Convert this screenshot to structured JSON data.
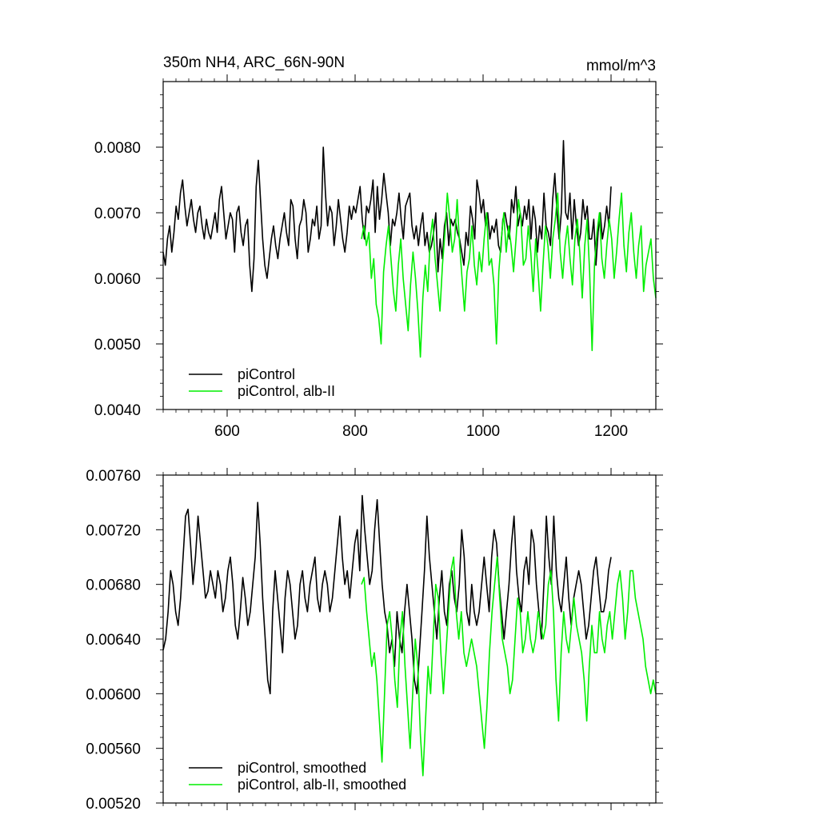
{
  "chart_data": [
    {
      "type": "line",
      "title": "350m NH4, ARC_66N-90N",
      "units": "mmol/m^3",
      "xlim": [
        500,
        1270
      ],
      "ylim": [
        0.004,
        0.009
      ],
      "xticks": [
        600,
        800,
        1000,
        1200
      ],
      "yticks": [
        0.004,
        0.005,
        0.006,
        0.007,
        0.008
      ],
      "xtick_labels": [
        "600",
        "800",
        "1000",
        "1200"
      ],
      "ytick_labels": [
        "0.0040",
        "0.0050",
        "0.0060",
        "0.0070",
        "0.0080"
      ],
      "legend": {
        "position": "bottom-left",
        "entries": [
          "piControl",
          "piControl, alb-II"
        ]
      },
      "series": [
        {
          "name": "piControl",
          "color": "#000000",
          "x_start": 500,
          "x_end": 1200,
          "values": [
            0.0064,
            0.0062,
            0.0066,
            0.0068,
            0.0064,
            0.0067,
            0.0071,
            0.0069,
            0.0073,
            0.0075,
            0.0071,
            0.0068,
            0.007,
            0.0072,
            0.0069,
            0.0067,
            0.007,
            0.0071,
            0.0068,
            0.0066,
            0.0069,
            0.0067,
            0.0066,
            0.0068,
            0.007,
            0.0067,
            0.0072,
            0.0074,
            0.007,
            0.0066,
            0.0068,
            0.007,
            0.0069,
            0.0064,
            0.007,
            0.0071,
            0.0067,
            0.0065,
            0.0068,
            0.0069,
            0.0062,
            0.0058,
            0.0063,
            0.0074,
            0.0078,
            0.0072,
            0.0066,
            0.0062,
            0.006,
            0.0063,
            0.0066,
            0.0068,
            0.0065,
            0.0063,
            0.0066,
            0.0068,
            0.007,
            0.0067,
            0.0065,
            0.0072,
            0.0071,
            0.0066,
            0.0063,
            0.0068,
            0.0069,
            0.0072,
            0.007,
            0.0064,
            0.0066,
            0.0069,
            0.0068,
            0.0071,
            0.0066,
            0.0068,
            0.008,
            0.0073,
            0.0068,
            0.0071,
            0.007,
            0.0065,
            0.0068,
            0.0072,
            0.0069,
            0.0066,
            0.0064,
            0.0067,
            0.0071,
            0.0069,
            0.0071,
            0.007,
            0.0072,
            0.0074,
            0.0069,
            0.0066,
            0.0071,
            0.007,
            0.0072,
            0.0075,
            0.0067,
            0.0074,
            0.0069,
            0.0072,
            0.0076,
            0.0073,
            0.007,
            0.0065,
            0.0069,
            0.0068,
            0.007,
            0.0073,
            0.0069,
            0.0066,
            0.0071,
            0.0072,
            0.0073,
            0.0068,
            0.0066,
            0.0068,
            0.0065,
            0.0068,
            0.007,
            0.0065,
            0.0067,
            0.0064,
            0.0065,
            0.0067,
            0.007,
            0.0061,
            0.0066,
            0.0063,
            0.0068,
            0.007,
            0.0065,
            0.0069,
            0.0068,
            0.0069,
            0.0067,
            0.0066,
            0.0064,
            0.0062,
            0.0067,
            0.0065,
            0.0071,
            0.0069,
            0.0066,
            0.0075,
            0.0073,
            0.007,
            0.0072,
            0.0068,
            0.007,
            0.0066,
            0.0068,
            0.0067,
            0.0069,
            0.0065,
            0.0064,
            0.0069,
            0.007,
            0.0068,
            0.0066,
            0.0072,
            0.007,
            0.0074,
            0.0068,
            0.007,
            0.0068,
            0.0071,
            0.0069,
            0.0072,
            0.0066,
            0.0071,
            0.0069,
            0.0064,
            0.0068,
            0.0066,
            0.0073,
            0.0068,
            0.0067,
            0.0065,
            0.0072,
            0.0076,
            0.007,
            0.0066,
            0.007,
            0.0081,
            0.007,
            0.0069,
            0.0073,
            0.0066,
            0.0072,
            0.0068,
            0.0065,
            0.0067,
            0.0072,
            0.0069,
            0.0071,
            0.0066,
            0.0066,
            0.0069,
            0.0062,
            0.0067,
            0.007,
            0.0066,
            0.0068,
            0.0071,
            0.0068,
            0.0074
          ]
        },
        {
          "name": "piControl, alb-II",
          "color": "#00ee00",
          "x_start": 810,
          "x_end": 1270,
          "values": [
            0.0066,
            0.0068,
            0.0065,
            0.0067,
            0.006,
            0.0063,
            0.0056,
            0.0054,
            0.005,
            0.0061,
            0.0065,
            0.0068,
            0.0063,
            0.0058,
            0.0055,
            0.0062,
            0.0066,
            0.006,
            0.0056,
            0.0052,
            0.0059,
            0.0064,
            0.006,
            0.0055,
            0.0048,
            0.0057,
            0.0062,
            0.0058,
            0.0066,
            0.0069,
            0.0063,
            0.0059,
            0.0055,
            0.0062,
            0.0067,
            0.0073,
            0.0069,
            0.0064,
            0.0066,
            0.0072,
            0.0065,
            0.006,
            0.0055,
            0.0061,
            0.0063,
            0.0068,
            0.0062,
            0.0059,
            0.0064,
            0.0061,
            0.0066,
            0.007,
            0.0062,
            0.0063,
            0.0059,
            0.005,
            0.0061,
            0.0066,
            0.007,
            0.0064,
            0.0068,
            0.0065,
            0.0061,
            0.0066,
            0.0072,
            0.0069,
            0.0062,
            0.0063,
            0.0068,
            0.0064,
            0.0058,
            0.0066,
            0.0061,
            0.0055,
            0.0062,
            0.0068,
            0.0065,
            0.006,
            0.0066,
            0.0069,
            0.0073,
            0.0064,
            0.006,
            0.0065,
            0.0068,
            0.0063,
            0.0059,
            0.0066,
            0.0069,
            0.0064,
            0.0057,
            0.0065,
            0.0069,
            0.0061,
            0.0049,
            0.0062,
            0.0067,
            0.007,
            0.0063,
            0.006,
            0.0065,
            0.0069,
            0.0066,
            0.006,
            0.0064,
            0.0069,
            0.0073,
            0.0065,
            0.0061,
            0.0067,
            0.007,
            0.0064,
            0.006,
            0.0065,
            0.0068,
            0.0058,
            0.0062,
            0.0064,
            0.0066,
            0.006,
            0.0057
          ]
        }
      ]
    },
    {
      "type": "line",
      "xlim": [
        500,
        1270
      ],
      "ylim": [
        0.0052,
        0.0076
      ],
      "xticks": [
        600,
        800,
        1000,
        1200
      ],
      "yticks": [
        0.0052,
        0.0056,
        0.006,
        0.0064,
        0.0068,
        0.0072,
        0.0076
      ],
      "ytick_labels": [
        "0.00520",
        "0.00560",
        "0.00600",
        "0.00640",
        "0.00680",
        "0.00720",
        "0.00760"
      ],
      "legend": {
        "position": "bottom-left",
        "entries": [
          "piControl, smoothed",
          "piControl, alb-II, smoothed"
        ]
      },
      "series": [
        {
          "name": "piControl, smoothed",
          "color": "#000000",
          "x_start": 500,
          "x_end": 1200,
          "values": [
            0.00632,
            0.0064,
            0.0066,
            0.0069,
            0.0068,
            0.0066,
            0.0065,
            0.0067,
            0.007,
            0.0073,
            0.00735,
            0.0071,
            0.0068,
            0.007,
            0.0073,
            0.0071,
            0.0069,
            0.0067,
            0.00675,
            0.0069,
            0.0068,
            0.0067,
            0.0069,
            0.0068,
            0.0066,
            0.0067,
            0.0069,
            0.007,
            0.0068,
            0.0065,
            0.0064,
            0.0066,
            0.00685,
            0.0067,
            0.0065,
            0.0066,
            0.0068,
            0.007,
            0.0074,
            0.0071,
            0.0067,
            0.0064,
            0.0061,
            0.006,
            0.0066,
            0.0069,
            0.0067,
            0.0065,
            0.0063,
            0.0067,
            0.0069,
            0.0068,
            0.0066,
            0.0064,
            0.0065,
            0.0068,
            0.0069,
            0.0067,
            0.0066,
            0.0068,
            0.0069,
            0.007,
            0.0067,
            0.0066,
            0.0068,
            0.0069,
            0.0068,
            0.0066,
            0.0067,
            0.0069,
            0.0071,
            0.0073,
            0.007,
            0.0068,
            0.0069,
            0.0067,
            0.0069,
            0.0071,
            0.0072,
            0.0069,
            0.00745,
            0.0072,
            0.007,
            0.0068,
            0.0069,
            0.0072,
            0.00742,
            0.0071,
            0.0068,
            0.0066,
            0.0065,
            0.0063,
            0.0064,
            0.0062,
            0.0066,
            0.0064,
            0.0063,
            0.0066,
            0.0068,
            0.0066,
            0.0064,
            0.0061,
            0.006,
            0.0063,
            0.0066,
            0.0069,
            0.0073,
            0.007,
            0.0068,
            0.0066,
            0.0064,
            0.0067,
            0.0069,
            0.0066,
            0.0065,
            0.0068,
            0.0069,
            0.0067,
            0.0066,
            0.0068,
            0.0072,
            0.007,
            0.0066,
            0.0065,
            0.0068,
            0.0066,
            0.0065,
            0.0066,
            0.0068,
            0.007,
            0.0068,
            0.0066,
            0.007,
            0.0072,
            0.0071,
            0.0068,
            0.0066,
            0.0064,
            0.0066,
            0.0068,
            0.0071,
            0.0073,
            0.0069,
            0.0067,
            0.0066,
            0.0069,
            0.007,
            0.0068,
            0.0072,
            0.0071,
            0.0068,
            0.0066,
            0.0064,
            0.0068,
            0.0073,
            0.007,
            0.0068,
            0.0073,
            0.0069,
            0.0067,
            0.0066,
            0.0068,
            0.007,
            0.0067,
            0.0065,
            0.0067,
            0.0068,
            0.0069,
            0.0068,
            0.0066,
            0.0064,
            0.0065,
            0.0067,
            0.0069,
            0.007,
            0.0068,
            0.0066,
            0.0066,
            0.0067,
            0.0069,
            0.007
          ]
        },
        {
          "name": "piControl, alb-II, smoothed",
          "color": "#00ee00",
          "x_start": 810,
          "x_end": 1270,
          "values": [
            0.0068,
            0.00685,
            0.0066,
            0.0064,
            0.0062,
            0.0063,
            0.0061,
            0.0058,
            0.0055,
            0.006,
            0.0065,
            0.0066,
            0.0064,
            0.0061,
            0.0059,
            0.0064,
            0.0066,
            0.0062,
            0.0059,
            0.0056,
            0.006,
            0.0064,
            0.0062,
            0.0057,
            0.0054,
            0.0058,
            0.0062,
            0.006,
            0.0064,
            0.0068,
            0.0067,
            0.0063,
            0.006,
            0.0063,
            0.0066,
            0.0069,
            0.007,
            0.0066,
            0.0064,
            0.0066,
            0.0063,
            0.0062,
            0.0063,
            0.0064,
            0.0063,
            0.0062,
            0.006,
            0.0058,
            0.0056,
            0.0059,
            0.0063,
            0.0066,
            0.0068,
            0.007,
            0.0067,
            0.0064,
            0.0063,
            0.0062,
            0.006,
            0.0061,
            0.0064,
            0.0067,
            0.0066,
            0.0063,
            0.0064,
            0.0066,
            0.0064,
            0.0063,
            0.0064,
            0.0066,
            0.0065,
            0.0064,
            0.0065,
            0.0068,
            0.0069,
            0.0066,
            0.0061,
            0.0058,
            0.0063,
            0.0066,
            0.0064,
            0.0063,
            0.0065,
            0.0067,
            0.0065,
            0.0064,
            0.0063,
            0.0061,
            0.0058,
            0.0062,
            0.0065,
            0.0063,
            0.0063,
            0.0066,
            0.0064,
            0.0063,
            0.0065,
            0.0066,
            0.0064,
            0.0066,
            0.0068,
            0.0069,
            0.0067,
            0.0064,
            0.0066,
            0.0069,
            0.0069,
            0.0067,
            0.0066,
            0.0065,
            0.0064,
            0.0062,
            0.0061,
            0.006,
            0.0061,
            0.006
          ]
        }
      ]
    }
  ]
}
